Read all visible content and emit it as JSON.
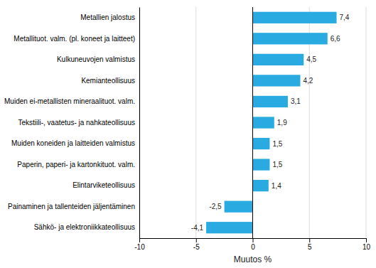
{
  "chart_data": {
    "type": "bar",
    "orientation": "horizontal",
    "categories": [
      "Sähkö- ja elektroniikkateollisuus",
      "Painaminen ja tallenteiden jäljentäminen",
      "Elintarviketeollisuus",
      "Paperin, paperi- ja kartonkituot. valm.",
      "Muiden koneiden ja laitteiden valmistus",
      "Tekstiili-, vaatetus- ja nahkateollisuus",
      "Muiden ei-metallisten mineraalituot. valm.",
      "Kemianteollisuus",
      "Kulkuneuvojen valmistus",
      "Metallituot. valm. (pl. koneet ja laitteet)",
      "Metallien jalostus"
    ],
    "values": [
      -4.1,
      -2.5,
      1.4,
      1.5,
      1.5,
      1.9,
      3.1,
      4.2,
      4.5,
      6.6,
      7.4
    ],
    "value_labels": [
      "-4,1",
      "-2,5",
      "1,4",
      "1,5",
      "1,5",
      "1,9",
      "3,1",
      "4,2",
      "4,5",
      "6,6",
      "7,4"
    ],
    "data_labels": true,
    "color": "#29abe2",
    "xlabel": "Muutos %",
    "xlim": [
      -10,
      10
    ],
    "xticks": [
      -10,
      -5,
      0,
      5,
      10
    ],
    "grid": true
  }
}
